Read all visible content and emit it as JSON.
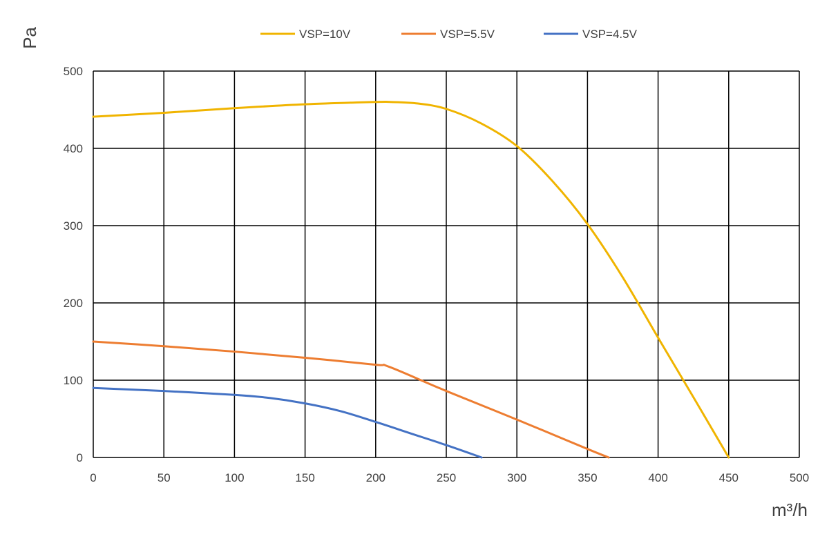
{
  "chart_data": {
    "type": "line",
    "title": "",
    "xlabel": "m³/h",
    "ylabel": "Pa",
    "xlim": [
      0,
      500
    ],
    "ylim": [
      0,
      500
    ],
    "x_ticks": [
      0,
      50,
      100,
      150,
      200,
      250,
      300,
      350,
      400,
      450,
      500
    ],
    "y_ticks": [
      0,
      100,
      200,
      300,
      400,
      500
    ],
    "grid": true,
    "legend_position": "top",
    "series": [
      {
        "name": "VSP=10V",
        "color": "#F0B400",
        "x": [
          0,
          50,
          100,
          150,
          200,
          210,
          230,
          250,
          275,
          300,
          325,
          350,
          375,
          400,
          425,
          450
        ],
        "y": [
          441,
          446,
          452,
          457,
          460,
          460,
          458,
          451,
          432,
          403,
          358,
          302,
          233,
          155,
          78,
          0
        ]
      },
      {
        "name": "VSP=5.5V",
        "color": "#ED7D31",
        "x": [
          0,
          50,
          100,
          150,
          200,
          210,
          250,
          300,
          350,
          365
        ],
        "y": [
          150,
          144,
          137,
          129,
          120,
          117,
          86,
          49,
          11,
          0
        ]
      },
      {
        "name": "VSP=4.5V",
        "color": "#4472C4",
        "x": [
          0,
          50,
          100,
          125,
          150,
          175,
          200,
          225,
          250,
          275
        ],
        "y": [
          90,
          86,
          81,
          77,
          70,
          60,
          46,
          31,
          16,
          0
        ]
      }
    ]
  }
}
